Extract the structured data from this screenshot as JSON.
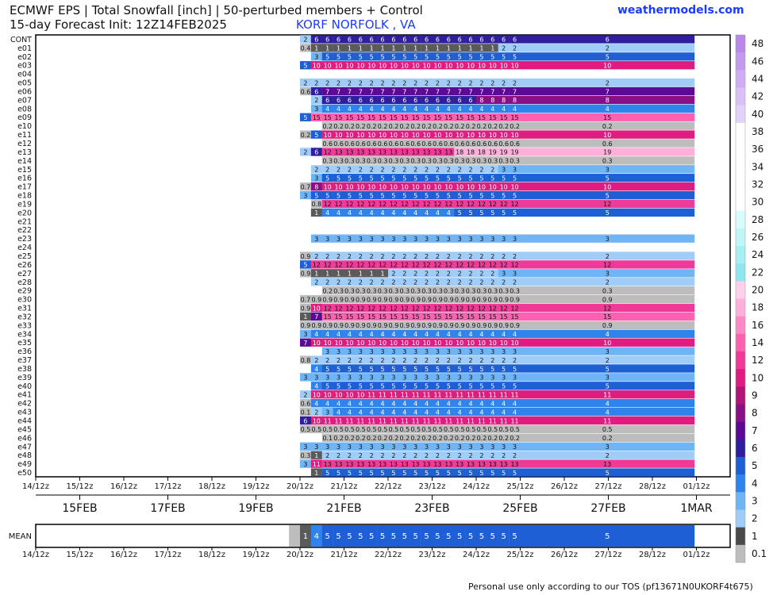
{
  "header": {
    "title_line1": "ECMWF EPS | Total Snowfall [inch] | 50-perturbed members + Control",
    "title_line2": "15-day Forecast Init: 12Z14FEB2025",
    "location": "KORF NORFOLK        , VA",
    "brand": "weathermodels.com"
  },
  "footer": {
    "text": "Personal use only according to our TOS (pf13671N0UKORF4t675)"
  },
  "chart_data": {
    "type": "heatmap",
    "title": "ECMWF EPS | Total Snowfall [inch] | 50-perturbed members + Control",
    "time_ticks": [
      "14/12z",
      "15/12z",
      "16/12z",
      "17/12z",
      "18/12z",
      "19/12z",
      "20/12z",
      "21/12z",
      "22/12z",
      "23/12z",
      "24/12z",
      "25/12z",
      "26/12z",
      "27/12z",
      "28/12z",
      "01/12z"
    ],
    "date_labels": [
      "15FEB",
      "17FEB",
      "19FEB",
      "21FEB",
      "23FEB",
      "25FEB",
      "27FEB",
      "1MAR"
    ],
    "columns_per_day": 4,
    "start_column": 24,
    "mean_label": "MEAN",
    "members": [
      {
        "name": "CONT",
        "values": [
          2,
          6,
          6,
          6,
          6,
          6,
          6,
          6,
          6,
          6,
          6,
          6,
          6,
          6,
          6,
          6,
          6,
          6,
          6,
          6,
          6
        ]
      },
      {
        "name": "e01",
        "values": [
          0.4,
          1,
          1,
          1,
          1,
          1,
          1,
          1,
          1,
          1,
          1,
          1,
          1,
          1,
          1,
          1,
          1,
          1,
          2,
          2,
          2
        ]
      },
      {
        "name": "e02",
        "values": [
          null,
          3,
          5,
          5,
          5,
          5,
          5,
          5,
          5,
          5,
          5,
          5,
          5,
          5,
          5,
          5,
          5,
          5,
          5,
          5,
          5
        ]
      },
      {
        "name": "e03",
        "values": [
          5,
          10,
          10,
          10,
          10,
          10,
          10,
          10,
          10,
          10,
          10,
          10,
          10,
          10,
          10,
          10,
          10,
          10,
          10,
          10,
          10
        ]
      },
      {
        "name": "e04",
        "values": []
      },
      {
        "name": "e05",
        "values": [
          2,
          2,
          2,
          2,
          2,
          2,
          2,
          2,
          2,
          2,
          2,
          2,
          2,
          2,
          2,
          2,
          2,
          2,
          2,
          2,
          2
        ]
      },
      {
        "name": "e06",
        "values": [
          0.6,
          6,
          7,
          7,
          7,
          7,
          7,
          7,
          7,
          7,
          7,
          7,
          7,
          7,
          7,
          7,
          7,
          7,
          7,
          7,
          7
        ]
      },
      {
        "name": "e07",
        "values": [
          null,
          2,
          6,
          6,
          6,
          6,
          6,
          6,
          6,
          6,
          6,
          6,
          6,
          6,
          6,
          6,
          8,
          8,
          8,
          8,
          8
        ]
      },
      {
        "name": "e08",
        "values": [
          null,
          3,
          4,
          4,
          4,
          4,
          4,
          4,
          4,
          4,
          4,
          4,
          4,
          4,
          4,
          4,
          4,
          4,
          4,
          4,
          4
        ]
      },
      {
        "name": "e09",
        "values": [
          5,
          15,
          15,
          15,
          15,
          15,
          15,
          15,
          15,
          15,
          15,
          15,
          15,
          15,
          15,
          15,
          15,
          15,
          15,
          15,
          15
        ]
      },
      {
        "name": "e10",
        "values": [
          null,
          null,
          0.2,
          0.2,
          0.2,
          0.2,
          0.2,
          0.2,
          0.2,
          0.2,
          0.2,
          0.2,
          0.2,
          0.2,
          0.2,
          0.2,
          0.2,
          0.2,
          0.2,
          0.2,
          0.2
        ]
      },
      {
        "name": "e11",
        "values": [
          0.2,
          5,
          10,
          10,
          10,
          10,
          10,
          10,
          10,
          10,
          10,
          10,
          10,
          10,
          10,
          10,
          10,
          10,
          10,
          10,
          10
        ]
      },
      {
        "name": "e12",
        "values": [
          null,
          null,
          0.6,
          0.6,
          0.6,
          0.6,
          0.6,
          0.6,
          0.6,
          0.6,
          0.6,
          0.6,
          0.6,
          0.6,
          0.6,
          0.6,
          0.6,
          0.6,
          0.6,
          0.6,
          0.6
        ]
      },
      {
        "name": "e13",
        "values": [
          2,
          6,
          12,
          13,
          13,
          13,
          13,
          13,
          13,
          13,
          13,
          13,
          13,
          13,
          18,
          18,
          18,
          19,
          19,
          19,
          19
        ]
      },
      {
        "name": "e14",
        "values": [
          null,
          null,
          0.3,
          0.3,
          0.3,
          0.3,
          0.3,
          0.3,
          0.3,
          0.3,
          0.3,
          0.3,
          0.3,
          0.3,
          0.3,
          0.3,
          0.3,
          0.3,
          0.3,
          0.3,
          0.3
        ]
      },
      {
        "name": "e15",
        "values": [
          null,
          2,
          2,
          2,
          2,
          2,
          2,
          2,
          2,
          2,
          2,
          2,
          2,
          2,
          2,
          2,
          2,
          2,
          3,
          3,
          3
        ]
      },
      {
        "name": "e16",
        "values": [
          null,
          3,
          5,
          5,
          5,
          5,
          5,
          5,
          5,
          5,
          5,
          5,
          5,
          5,
          5,
          5,
          5,
          5,
          5,
          5,
          5
        ]
      },
      {
        "name": "e17",
        "values": [
          0.7,
          8,
          10,
          10,
          10,
          10,
          10,
          10,
          10,
          10,
          10,
          10,
          10,
          10,
          10,
          10,
          10,
          10,
          10,
          10,
          10
        ]
      },
      {
        "name": "e18",
        "values": [
          3,
          5,
          5,
          5,
          5,
          5,
          5,
          5,
          5,
          5,
          5,
          5,
          5,
          5,
          5,
          5,
          5,
          5,
          5,
          5,
          5
        ]
      },
      {
        "name": "e19",
        "values": [
          null,
          0.8,
          12,
          12,
          12,
          12,
          12,
          12,
          12,
          12,
          12,
          12,
          12,
          12,
          12,
          12,
          12,
          12,
          12,
          12,
          12
        ]
      },
      {
        "name": "e20",
        "values": [
          null,
          1,
          4,
          4,
          4,
          4,
          4,
          4,
          4,
          4,
          4,
          4,
          4,
          4,
          5,
          5,
          5,
          5,
          5,
          5,
          5
        ]
      },
      {
        "name": "e21",
        "values": []
      },
      {
        "name": "e22",
        "values": []
      },
      {
        "name": "e23",
        "values": [
          null,
          3,
          3,
          3,
          3,
          3,
          3,
          3,
          3,
          3,
          3,
          3,
          3,
          3,
          3,
          3,
          3,
          3,
          3,
          3,
          3
        ]
      },
      {
        "name": "e24",
        "values": []
      },
      {
        "name": "e25",
        "values": [
          0.9,
          2,
          2,
          2,
          2,
          2,
          2,
          2,
          2,
          2,
          2,
          2,
          2,
          2,
          2,
          2,
          2,
          2,
          2,
          2,
          2
        ]
      },
      {
        "name": "e26",
        "values": [
          5,
          12,
          12,
          12,
          12,
          12,
          12,
          12,
          12,
          12,
          12,
          12,
          12,
          12,
          12,
          12,
          12,
          12,
          12,
          12,
          12
        ]
      },
      {
        "name": "e27",
        "values": [
          0.9,
          1,
          1,
          1,
          1,
          1,
          1,
          1,
          2,
          2,
          2,
          2,
          2,
          2,
          2,
          2,
          2,
          2,
          3,
          3,
          3
        ]
      },
      {
        "name": "e28",
        "values": [
          null,
          2,
          2,
          2,
          2,
          2,
          2,
          2,
          2,
          2,
          2,
          2,
          2,
          2,
          2,
          2,
          2,
          2,
          2,
          2,
          2
        ]
      },
      {
        "name": "e29",
        "values": [
          null,
          null,
          0.2,
          0.3,
          0.3,
          0.3,
          0.3,
          0.3,
          0.3,
          0.3,
          0.3,
          0.3,
          0.3,
          0.3,
          0.3,
          0.3,
          0.3,
          0.3,
          0.3,
          0.3,
          0.3
        ]
      },
      {
        "name": "e30",
        "values": [
          0.7,
          0.9,
          0.9,
          0.9,
          0.9,
          0.9,
          0.9,
          0.9,
          0.9,
          0.9,
          0.9,
          0.9,
          0.9,
          0.9,
          0.9,
          0.9,
          0.9,
          0.9,
          0.9,
          0.9,
          0.9
        ]
      },
      {
        "name": "e31",
        "values": [
          0.9,
          10,
          12,
          12,
          12,
          12,
          12,
          12,
          12,
          12,
          12,
          12,
          12,
          12,
          12,
          12,
          12,
          12,
          12,
          12,
          12
        ]
      },
      {
        "name": "e32",
        "values": [
          1,
          7,
          15,
          15,
          15,
          15,
          15,
          15,
          15,
          15,
          15,
          15,
          15,
          15,
          15,
          15,
          15,
          15,
          15,
          15,
          15
        ]
      },
      {
        "name": "e33",
        "values": [
          0.9,
          0.9,
          0.9,
          0.9,
          0.9,
          0.9,
          0.9,
          0.9,
          0.9,
          0.9,
          0.9,
          0.9,
          0.9,
          0.9,
          0.9,
          0.9,
          0.9,
          0.9,
          0.9,
          0.9,
          0.9
        ]
      },
      {
        "name": "e34",
        "values": [
          3,
          4,
          4,
          4,
          4,
          4,
          4,
          4,
          4,
          4,
          4,
          4,
          4,
          4,
          4,
          4,
          4,
          4,
          4,
          4,
          4
        ]
      },
      {
        "name": "e35",
        "values": [
          7,
          10,
          10,
          10,
          10,
          10,
          10,
          10,
          10,
          10,
          10,
          10,
          10,
          10,
          10,
          10,
          10,
          10,
          10,
          10,
          10
        ]
      },
      {
        "name": "e36",
        "values": [
          null,
          null,
          3,
          3,
          3,
          3,
          3,
          3,
          3,
          3,
          3,
          3,
          3,
          3,
          3,
          3,
          3,
          3,
          3,
          3,
          3
        ]
      },
      {
        "name": "e37",
        "values": [
          0.8,
          2,
          2,
          2,
          2,
          2,
          2,
          2,
          2,
          2,
          2,
          2,
          2,
          2,
          2,
          2,
          2,
          2,
          2,
          2,
          2
        ]
      },
      {
        "name": "e38",
        "values": [
          null,
          4,
          5,
          5,
          5,
          5,
          5,
          5,
          5,
          5,
          5,
          5,
          5,
          5,
          5,
          5,
          5,
          5,
          5,
          5,
          5
        ]
      },
      {
        "name": "e39",
        "values": [
          3,
          3,
          3,
          3,
          3,
          3,
          3,
          3,
          3,
          3,
          3,
          3,
          3,
          3,
          3,
          3,
          3,
          3,
          3,
          3,
          3
        ]
      },
      {
        "name": "e40",
        "values": [
          null,
          4,
          5,
          5,
          5,
          5,
          5,
          5,
          5,
          5,
          5,
          5,
          5,
          5,
          5,
          5,
          5,
          5,
          5,
          5,
          5
        ]
      },
      {
        "name": "e41",
        "values": [
          2,
          10,
          10,
          10,
          10,
          10,
          11,
          11,
          11,
          11,
          11,
          11,
          11,
          11,
          11,
          11,
          11,
          11,
          11,
          11,
          11
        ]
      },
      {
        "name": "e42",
        "values": [
          0.6,
          4,
          4,
          4,
          4,
          4,
          4,
          4,
          4,
          4,
          4,
          4,
          4,
          4,
          4,
          4,
          4,
          4,
          4,
          4,
          4
        ]
      },
      {
        "name": "e43",
        "values": [
          0.1,
          2,
          3,
          4,
          4,
          4,
          4,
          4,
          4,
          4,
          4,
          4,
          4,
          4,
          4,
          4,
          4,
          4,
          4,
          4,
          4
        ]
      },
      {
        "name": "e44",
        "values": [
          6,
          10,
          11,
          11,
          11,
          11,
          11,
          11,
          11,
          11,
          11,
          11,
          11,
          11,
          11,
          11,
          11,
          11,
          11,
          11,
          11
        ]
      },
      {
        "name": "e45",
        "values": [
          0.5,
          0.5,
          0.5,
          0.5,
          0.5,
          0.5,
          0.5,
          0.5,
          0.5,
          0.5,
          0.5,
          0.5,
          0.5,
          0.5,
          0.5,
          0.5,
          0.5,
          0.5,
          0.5,
          0.5,
          0.5
        ]
      },
      {
        "name": "e46",
        "values": [
          null,
          null,
          0.1,
          0.2,
          0.2,
          0.2,
          0.2,
          0.2,
          0.2,
          0.2,
          0.2,
          0.2,
          0.2,
          0.2,
          0.2,
          0.2,
          0.2,
          0.2,
          0.2,
          0.2,
          0.2
        ]
      },
      {
        "name": "e47",
        "values": [
          3,
          3,
          3,
          3,
          3,
          3,
          3,
          3,
          3,
          3,
          3,
          3,
          3,
          3,
          3,
          3,
          3,
          3,
          3,
          3,
          3
        ]
      },
      {
        "name": "e48",
        "values": [
          0.3,
          1,
          2,
          2,
          2,
          2,
          2,
          2,
          2,
          2,
          2,
          2,
          2,
          2,
          2,
          2,
          2,
          2,
          2,
          2,
          2
        ]
      },
      {
        "name": "e49",
        "values": [
          3,
          11,
          13,
          13,
          13,
          13,
          13,
          13,
          13,
          13,
          13,
          13,
          13,
          13,
          13,
          13,
          13,
          13,
          13,
          13,
          13
        ]
      },
      {
        "name": "e50",
        "values": [
          null,
          1,
          5,
          5,
          5,
          5,
          5,
          5,
          5,
          5,
          5,
          5,
          5,
          5,
          5,
          5,
          5,
          5,
          5,
          5,
          5
        ]
      }
    ],
    "mean_values": [
      1,
      4,
      5,
      5,
      5,
      5,
      5,
      5,
      5,
      5,
      5,
      5,
      5,
      5,
      5,
      5,
      5,
      5,
      5,
      5,
      5
    ],
    "colorbar": {
      "labels": [
        "48",
        "46",
        "44",
        "42",
        "40",
        "38",
        "36",
        "34",
        "32",
        "30",
        "28",
        "26",
        "24",
        "22",
        "20",
        "18",
        "16",
        "14",
        "12",
        "10",
        "9",
        "8",
        "7",
        "6",
        "5",
        "4",
        "3",
        "2",
        "1",
        "0.1"
      ],
      "colors": [
        "#b888ea",
        "#c49af0",
        "#cfadf4",
        "#d9c0f7",
        "#e2d2fa",
        "#ffffff",
        "#ffffff",
        "#ffffff",
        "#ffffff",
        "#ffffff",
        "#d8fcfc",
        "#bff7f7",
        "#a5f0f2",
        "#8fe6ee",
        "#ffd0ea",
        "#ffb0da",
        "#ff88c6",
        "#ff60b0",
        "#f03a98",
        "#e01c80",
        "#b0157a",
        "#8a0f86",
        "#5a0a94",
        "#2f1f9e",
        "#1f5fd6",
        "#2f83ea",
        "#6fb4f4",
        "#9fcdf8",
        "#4a4a4a",
        "#bdbdbd"
      ]
    }
  }
}
